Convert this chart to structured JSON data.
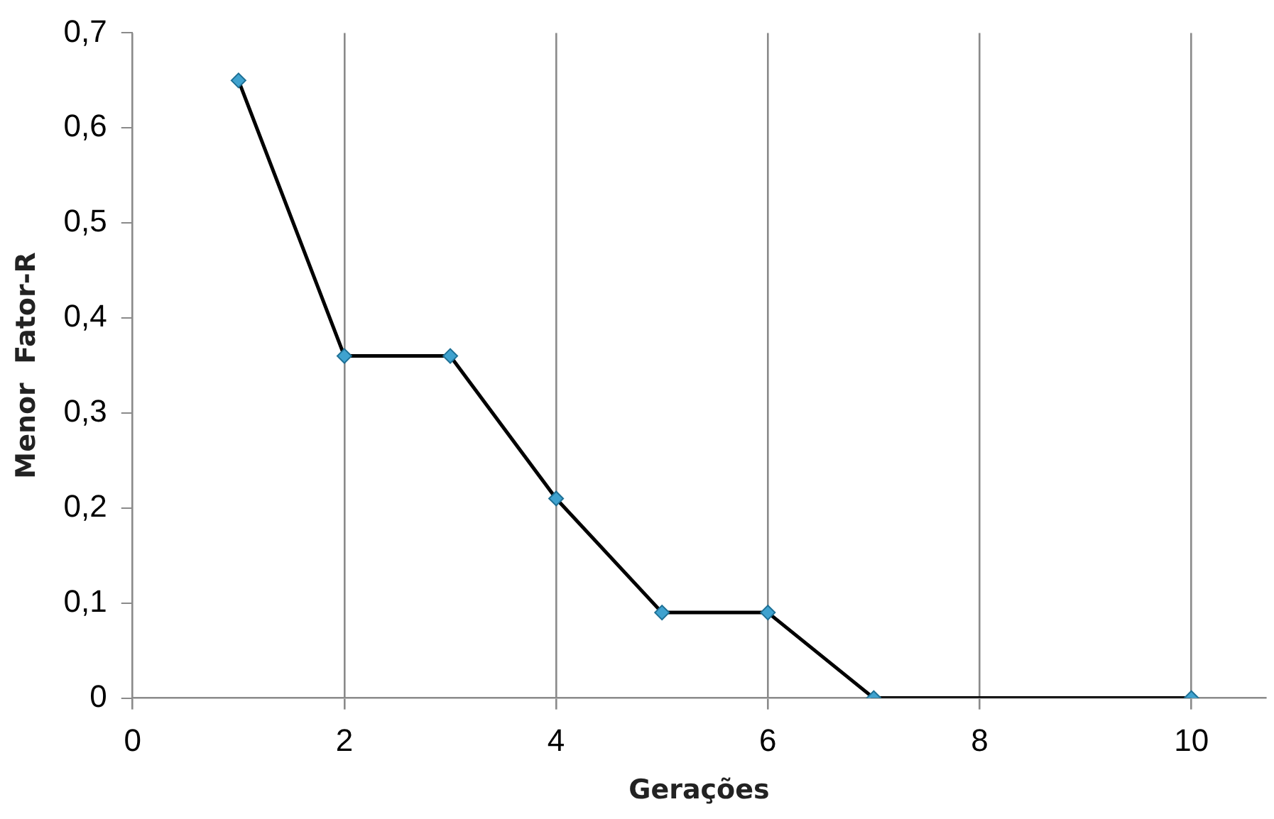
{
  "chart_data": {
    "type": "line",
    "xlabel": "Gerações",
    "ylabel": "Menor  Fator-R",
    "x": [
      1,
      2,
      3,
      4,
      5,
      6,
      7,
      10
    ],
    "series": [
      {
        "color": "#000000",
        "values": [
          0.65,
          0.36,
          0.36,
          0.21,
          0.09,
          0.09,
          0,
          0
        ]
      }
    ],
    "marker": "diamond",
    "line_style": "solid",
    "grid": "x",
    "legend": false,
    "xlim": [
      0,
      10.7
    ],
    "xticks": [
      0,
      2,
      4,
      6,
      8,
      10
    ],
    "ylim": [
      0,
      0.7
    ],
    "yticks": [
      {
        "value": 0,
        "label": "0"
      },
      {
        "value": 0.1,
        "label": "0,1"
      },
      {
        "value": 0.2,
        "label": "0,2"
      },
      {
        "value": 0.3,
        "label": "0,3"
      },
      {
        "value": 0.4,
        "label": "0,4"
      },
      {
        "value": 0.5,
        "label": "0,5"
      },
      {
        "value": 0.6,
        "label": "0,6"
      },
      {
        "value": 0.7,
        "label": "0,7"
      }
    ]
  }
}
